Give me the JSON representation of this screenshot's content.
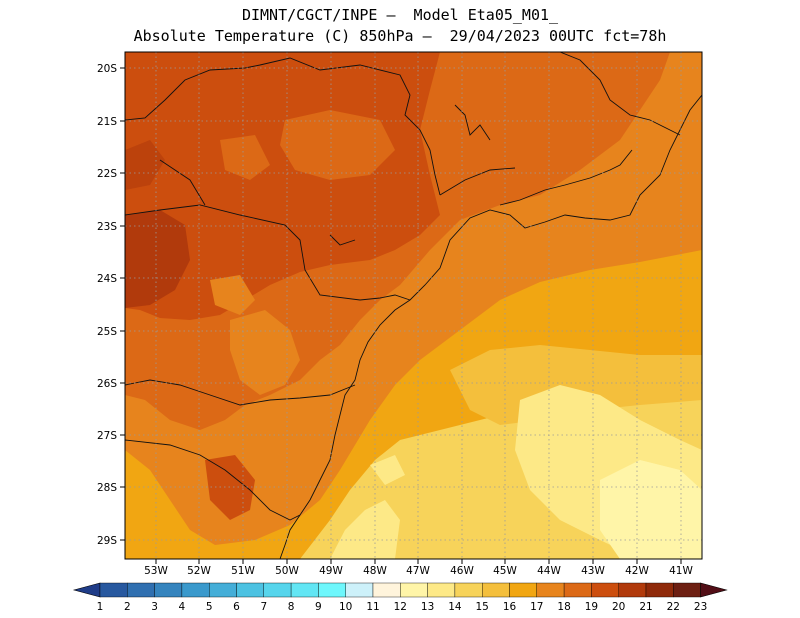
{
  "title_line1": "DIMNT/CGCT/INPE –  Model Eta05_M01_",
  "title_line2": "Absolute Temperature (C) 850hPa –  29/04/2023 00UTC fct=78h",
  "lat_labels": [
    "20S",
    "21S",
    "22S",
    "23S",
    "24S",
    "25S",
    "26S",
    "27S",
    "28S",
    "29S"
  ],
  "lon_labels": [
    "53W",
    "52W",
    "51W",
    "50W",
    "49W",
    "48W",
    "47W",
    "46W",
    "45W",
    "44W",
    "43W",
    "42W",
    "41W"
  ],
  "colorbar": {
    "labels": [
      "1",
      "2",
      "3",
      "4",
      "5",
      "6",
      "7",
      "8",
      "9",
      "10",
      "11",
      "12",
      "13",
      "14",
      "15",
      "16",
      "17",
      "18",
      "19",
      "20",
      "21",
      "22",
      "23"
    ],
    "colors": [
      "#1f3c88",
      "#27589f",
      "#2f6fb0",
      "#3584be",
      "#3a99cc",
      "#44aed8",
      "#4cc2e2",
      "#56d5ec",
      "#62e6f4",
      "#6ef7fc",
      "#cdf1fa",
      "#fff4dc",
      "#fff5a8",
      "#fde987",
      "#f7d35a",
      "#f4bf3c",
      "#f1a612",
      "#e7841d",
      "#dc6916",
      "#cc4e0e",
      "#b13a0c",
      "#8f2a0a",
      "#6d1f12",
      "#520e16"
    ]
  }
}
